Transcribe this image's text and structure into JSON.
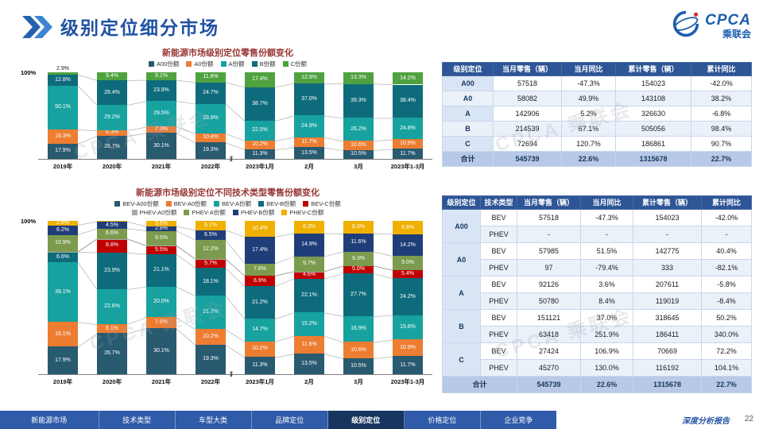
{
  "header": {
    "title": "级别定位细分市场",
    "logo": {
      "brand": "CPCA",
      "sub": "乘联会"
    }
  },
  "watermark": "CPCA 乘联会",
  "chart_data": [
    {
      "type": "bar",
      "stacked": true,
      "title": "新能源市场级别定位零售份额变化",
      "y_axis_top_label": "100%",
      "ylim": [
        0,
        100
      ],
      "unit": "%",
      "grid": false,
      "legend_position": "top",
      "categories": [
        "2019年",
        "2020年",
        "2021年",
        "2022年",
        "2023年1月",
        "2月",
        "3月",
        "2023年1-3月"
      ],
      "series": [
        {
          "name": "A00份额",
          "color": "#285A70",
          "values": [
            17.9,
            26.7,
            30.1,
            19.3,
            11.3,
            13.5,
            10.5,
            11.7
          ]
        },
        {
          "name": "A0份额",
          "color": "#ED7D31",
          "values": [
            16.3,
            6.3,
            7.3,
            10.4,
            10.2,
            11.7,
            10.6,
            10.9
          ]
        },
        {
          "name": "A份额",
          "color": "#17A2A0",
          "values": [
            50.1,
            29.2,
            29.5,
            33.9,
            22.5,
            24.9,
            26.2,
            24.8
          ]
        },
        {
          "name": "B份额",
          "color": "#0E6B7C",
          "values": [
            12.8,
            28.4,
            23.9,
            24.7,
            38.7,
            37.0,
            39.3,
            38.4
          ]
        },
        {
          "name": "C份额",
          "color": "#4FA23F",
          "values": [
            2.9,
            9.4,
            9.1,
            11.8,
            17.4,
            12.9,
            13.3,
            14.2
          ]
        }
      ],
      "legend_rows": [
        [
          0,
          1,
          2,
          3,
          4
        ]
      ]
    },
    {
      "type": "bar",
      "stacked": true,
      "title": "新能源市场级别定位不同技术类型零售份额变化",
      "y_axis_top_label": "100%",
      "ylim": [
        0,
        100
      ],
      "unit": "%",
      "grid": false,
      "legend_position": "top",
      "categories": [
        "2019年",
        "2020年",
        "2021年",
        "2022年",
        "2023年1月",
        "2月",
        "3月",
        "2023年1-3月"
      ],
      "series": [
        {
          "name": "BEV-A00份额",
          "color": "#285A70",
          "values": [
            17.9,
            26.7,
            30.1,
            19.3,
            11.3,
            13.5,
            10.5,
            11.7
          ]
        },
        {
          "name": "BEV-A0份额",
          "color": "#ED7D31",
          "values": [
            16.1,
            6.1,
            7.0,
            10.2,
            10.2,
            11.6,
            10.6,
            10.9
          ]
        },
        {
          "name": "BEV-A份额",
          "color": "#17A2A0",
          "values": [
            39.1,
            22.6,
            20.0,
            21.7,
            14.7,
            15.2,
            16.9,
            15.8
          ]
        },
        {
          "name": "BEV-B份额",
          "color": "#0E6B7C",
          "values": [
            6.6,
            23.9,
            21.1,
            18.1,
            21.2,
            22.1,
            27.7,
            24.2
          ]
        },
        {
          "name": "BEV-C份额",
          "color": "#C00000",
          "values": [
            0.1,
            8.8,
            5.5,
            5.7,
            6.9,
            4.6,
            5.0,
            5.4
          ]
        },
        {
          "name": "PHEV-A0份额",
          "color": "#A8A8A8",
          "values": [
            0.2,
            0.2,
            0.3,
            0.2,
            0.0,
            0.1,
            0.0,
            0.0
          ]
        },
        {
          "name": "PHEV-A份额",
          "color": "#7C9B4E",
          "values": [
            10.9,
            6.6,
            9.5,
            12.2,
            7.8,
            9.7,
            9.3,
            9.0
          ]
        },
        {
          "name": "PHEV-B份额",
          "color": "#1F3E79",
          "values": [
            6.2,
            4.5,
            2.8,
            6.5,
            17.4,
            14.9,
            11.6,
            14.2
          ]
        },
        {
          "name": "PHEV-C份额",
          "color": "#F0B000",
          "values": [
            2.8,
            0.6,
            3.6,
            6.1,
            10.4,
            8.3,
            8.3,
            8.8
          ]
        }
      ],
      "legend_rows": [
        [
          0,
          1,
          2,
          3,
          4
        ],
        [
          5,
          6,
          7,
          8
        ]
      ]
    }
  ],
  "table1": {
    "headers": [
      "级别定位",
      "当月零售（辆）",
      "当月同比",
      "累计零售（辆）",
      "累计同比"
    ],
    "rows": [
      [
        "A00",
        "57518",
        "-47.3%",
        "154023",
        "-42.0%"
      ],
      [
        "A0",
        "58082",
        "49.9%",
        "143108",
        "38.2%"
      ],
      [
        "A",
        "142906",
        "5.2%",
        "326630",
        "-6.8%"
      ],
      [
        "B",
        "214539",
        "67.1%",
        "505056",
        "98.4%"
      ],
      [
        "C",
        "72694",
        "120.7%",
        "186861",
        "90.7%"
      ]
    ],
    "total": [
      "合计",
      "545739",
      "22.6%",
      "1315678",
      "22.7%"
    ]
  },
  "table2": {
    "headers": [
      "级别定位",
      "技术类型",
      "当月零售（辆）",
      "当月同比",
      "累计零售（辆）",
      "累计同比"
    ],
    "groups": [
      {
        "label": "A00",
        "rows": [
          [
            "BEV",
            "57518",
            "-47.3%",
            "154023",
            "-42.0%"
          ],
          [
            "PHEV",
            "-",
            "-",
            "-",
            "-"
          ]
        ]
      },
      {
        "label": "A0",
        "rows": [
          [
            "BEV",
            "57985",
            "51.5%",
            "142775",
            "40.4%"
          ],
          [
            "PHEV",
            "97",
            "-79.4%",
            "333",
            "-82.1%"
          ]
        ]
      },
      {
        "label": "A",
        "rows": [
          [
            "BEV",
            "92126",
            "3.6%",
            "207611",
            "-5.8%"
          ],
          [
            "PHEV",
            "50780",
            "8.4%",
            "119019",
            "-8.4%"
          ]
        ]
      },
      {
        "label": "B",
        "rows": [
          [
            "BEV",
            "151121",
            "37.0%",
            "318645",
            "50.2%"
          ],
          [
            "PHEV",
            "63418",
            "251.9%",
            "186411",
            "340.0%"
          ]
        ]
      },
      {
        "label": "C",
        "rows": [
          [
            "BEV",
            "27424",
            "106.9%",
            "70669",
            "72.2%"
          ],
          [
            "PHEV",
            "45270",
            "130.0%",
            "116192",
            "104.1%"
          ]
        ]
      }
    ],
    "total": [
      "合计",
      "545739",
      "22.6%",
      "1315678",
      "22.7%"
    ]
  },
  "footer": {
    "tabs": [
      "新能源市场",
      "技术类型",
      "车型大类",
      "品牌定位",
      "级别定位",
      "价格定位",
      "企业竞争"
    ],
    "active_tab": "级别定位",
    "brand_text": "深度分析报告",
    "page": "22"
  }
}
